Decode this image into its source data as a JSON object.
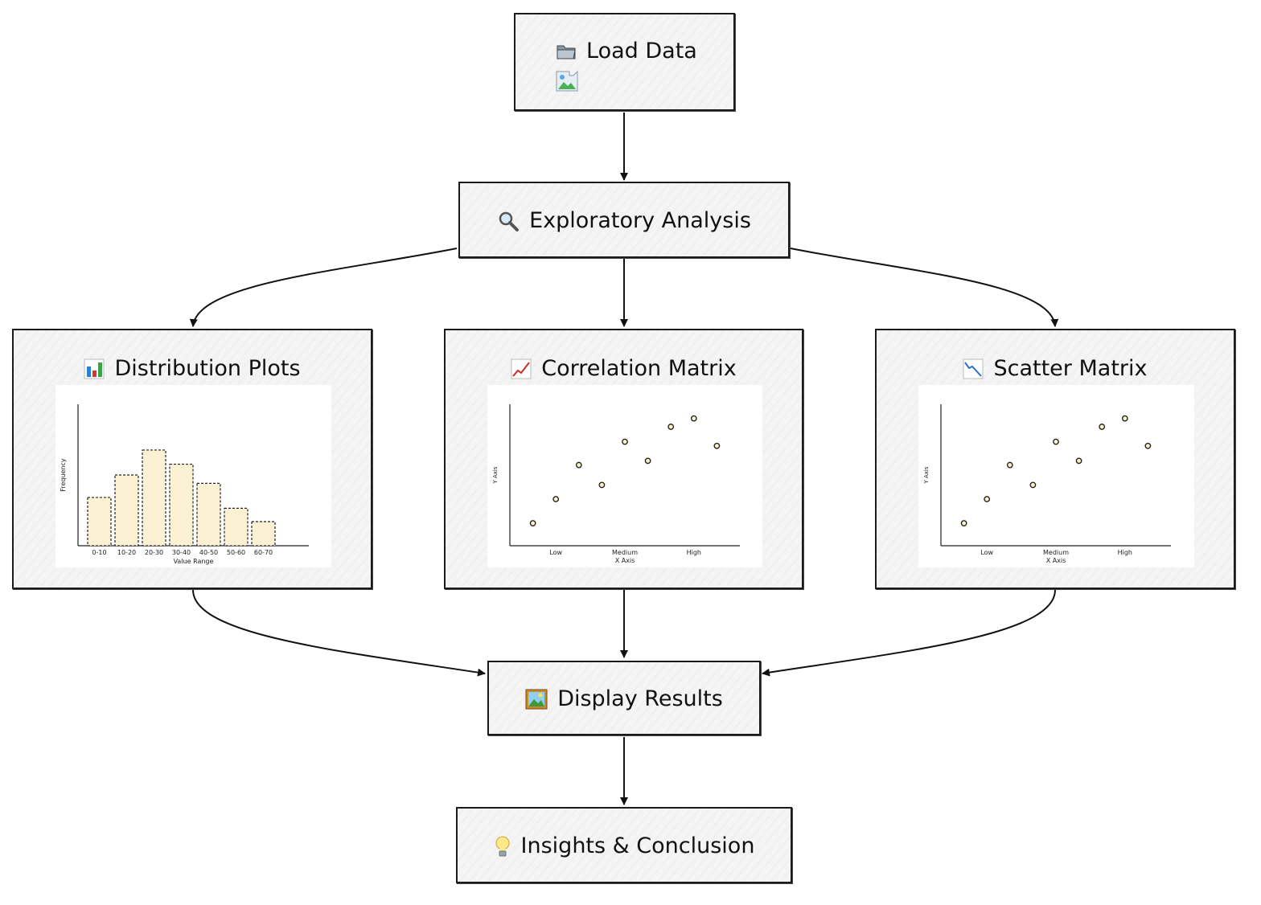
{
  "nodes": {
    "load": {
      "label": "Load Data",
      "icon": "folder-icon",
      "broken_image_icon": "broken-image-icon"
    },
    "explore": {
      "label": "Exploratory Analysis",
      "icon": "magnifier-icon"
    },
    "distribution": {
      "label": "Distribution Plots",
      "icon": "bar-chart-icon"
    },
    "correlation": {
      "label": "Correlation Matrix",
      "icon": "chart-up-icon"
    },
    "scatter": {
      "label": "Scatter Matrix",
      "icon": "chart-down-icon"
    },
    "display": {
      "label": "Display Results",
      "icon": "framed-picture-icon"
    },
    "insights": {
      "label": "Insights & Conclusion",
      "icon": "lightbulb-icon"
    }
  },
  "edges": [
    {
      "from": "load",
      "to": "explore"
    },
    {
      "from": "explore",
      "to": "distribution"
    },
    {
      "from": "explore",
      "to": "correlation"
    },
    {
      "from": "explore",
      "to": "scatter"
    },
    {
      "from": "distribution",
      "to": "display"
    },
    {
      "from": "correlation",
      "to": "display"
    },
    {
      "from": "scatter",
      "to": "display"
    },
    {
      "from": "display",
      "to": "insights"
    }
  ],
  "chart_data": [
    {
      "type": "bar",
      "categories": [
        "0-10",
        "10-20",
        "20-30",
        "30-40",
        "40-50",
        "50-60",
        "60-70"
      ],
      "values": [
        58,
        85,
        115,
        98,
        75,
        45,
        29
      ],
      "xlabel": "Value Range",
      "ylabel": "Frequency",
      "ylim": [
        0,
        170
      ],
      "colors": {
        "bar": "#fcf1d3",
        "stroke": "#222222"
      }
    },
    {
      "type": "scatter",
      "x": [
        1,
        2,
        3,
        4,
        5,
        6,
        7,
        8,
        9
      ],
      "y": [
        27,
        56,
        97,
        73,
        125,
        102,
        143,
        153,
        120
      ],
      "x_tick_labels": [
        "Low",
        "Medium",
        "High"
      ],
      "x_tick_positions": [
        2,
        5,
        8
      ],
      "xlabel": "X Axis",
      "ylabel": "Y Axis",
      "xlim": [
        0,
        10
      ],
      "ylim": [
        0,
        170
      ],
      "colors": {
        "point": "#fbf4c9",
        "stroke": "#222222"
      }
    },
    {
      "type": "scatter",
      "x": [
        1,
        2,
        3,
        4,
        5,
        6,
        7,
        8,
        9
      ],
      "y": [
        27,
        56,
        97,
        73,
        125,
        102,
        143,
        153,
        120
      ],
      "x_tick_labels": [
        "Low",
        "Medium",
        "High"
      ],
      "x_tick_positions": [
        2,
        5,
        8
      ],
      "xlabel": "X Axis",
      "ylabel": "Y Axis",
      "xlim": [
        0,
        10
      ],
      "ylim": [
        0,
        170
      ],
      "colors": {
        "point": "#fbf4c9",
        "stroke": "#222222"
      }
    }
  ]
}
